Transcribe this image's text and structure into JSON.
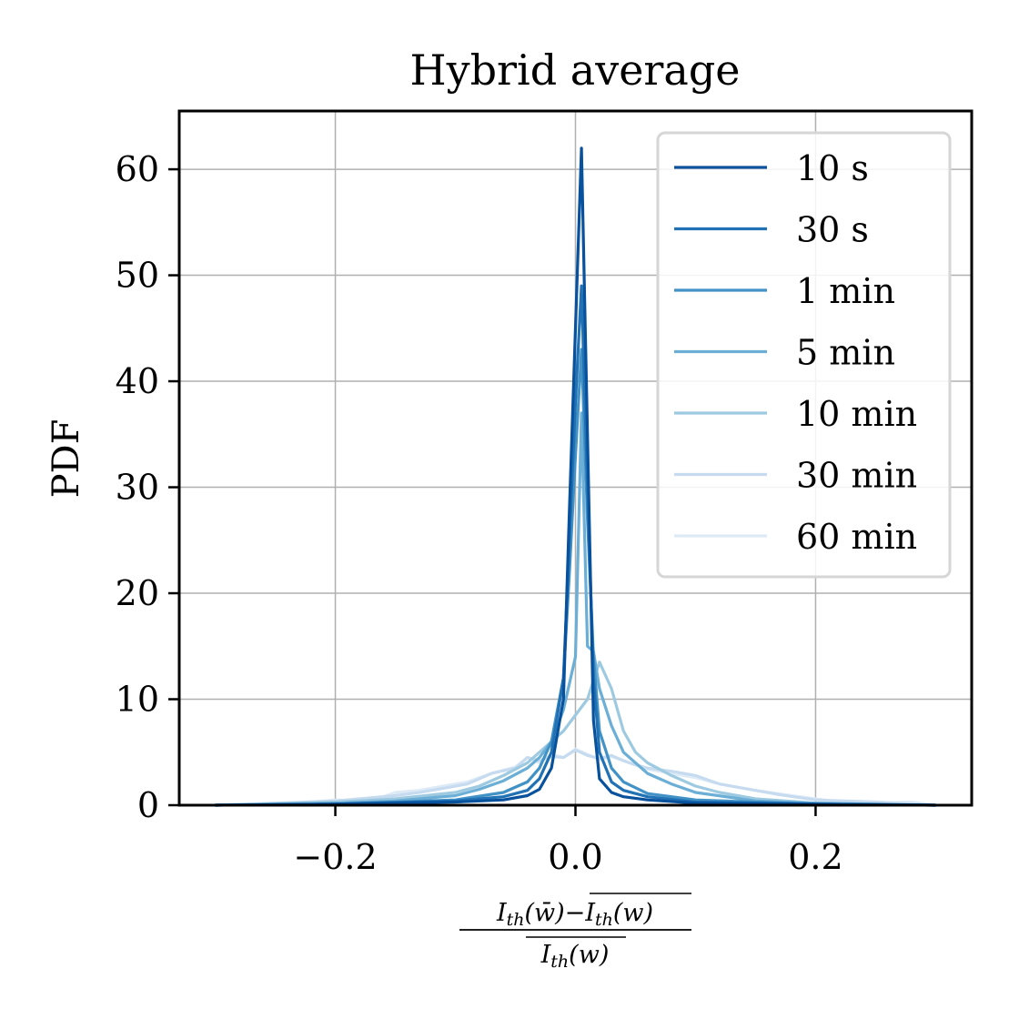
{
  "chart_data": {
    "type": "line",
    "title": "Hybrid average",
    "ylabel": "PDF",
    "xlabel": {
      "numerator": "I_th(w̄)−I_th(w)‾",
      "numerator_left": "I",
      "numerator_left_sub": "th",
      "numerator_left_arg": "(w̄)−",
      "numerator_right": "I",
      "numerator_right_sub": "th",
      "numerator_right_arg": "(w)",
      "denominator_main": "I",
      "denominator_sub": "th",
      "denominator_arg": "(w)"
    },
    "xlim": [
      -0.33,
      0.33
    ],
    "ylim": [
      0,
      65.5
    ],
    "xticks": [
      -0.2,
      0.0,
      0.2
    ],
    "xtick_labels": [
      "−0.2",
      "0.0",
      "0.2"
    ],
    "yticks": [
      0,
      10,
      20,
      30,
      40,
      50,
      60
    ],
    "ytick_labels": [
      "0",
      "10",
      "20",
      "30",
      "40",
      "50",
      "60"
    ],
    "grid": true,
    "legend_position": "top-right",
    "series": [
      {
        "name": "10 s",
        "color": "#08519c",
        "x": [
          -0.3,
          -0.2,
          -0.1,
          -0.06,
          -0.04,
          -0.03,
          -0.02,
          -0.01,
          -0.005,
          0.0,
          0.005,
          0.01,
          0.015,
          0.02,
          0.03,
          0.04,
          0.06,
          0.1,
          0.2,
          0.3
        ],
        "y": [
          0,
          0.1,
          0.3,
          0.5,
          0.9,
          1.5,
          3.5,
          10,
          28,
          45,
          62,
          35,
          8,
          2.5,
          1.2,
          0.8,
          0.5,
          0.2,
          0.1,
          0
        ]
      },
      {
        "name": "30 s",
        "color": "#2171b5",
        "x": [
          -0.3,
          -0.2,
          -0.1,
          -0.06,
          -0.04,
          -0.03,
          -0.02,
          -0.01,
          -0.005,
          0.0,
          0.005,
          0.01,
          0.015,
          0.02,
          0.03,
          0.04,
          0.06,
          0.1,
          0.2,
          0.3
        ],
        "y": [
          0,
          0.1,
          0.4,
          0.8,
          1.4,
          2.5,
          5,
          12,
          25,
          38,
          49,
          30,
          12,
          5,
          2.2,
          1.4,
          0.8,
          0.3,
          0.1,
          0
        ]
      },
      {
        "name": "1 min",
        "color": "#4292c6",
        "x": [
          -0.3,
          -0.2,
          -0.1,
          -0.06,
          -0.04,
          -0.03,
          -0.02,
          -0.01,
          -0.005,
          0.0,
          0.005,
          0.01,
          0.015,
          0.02,
          0.03,
          0.04,
          0.06,
          0.1,
          0.2,
          0.3
        ],
        "y": [
          0,
          0.1,
          0.5,
          1.2,
          2.2,
          3.5,
          6,
          12,
          22,
          33,
          43,
          27,
          14,
          7,
          3.5,
          2.2,
          1.1,
          0.5,
          0.1,
          0
        ]
      },
      {
        "name": "5 min",
        "color": "#6baed6",
        "x": [
          -0.3,
          -0.2,
          -0.15,
          -0.1,
          -0.08,
          -0.06,
          -0.04,
          -0.03,
          -0.02,
          -0.01,
          0.0,
          0.005,
          0.01,
          0.015,
          0.02,
          0.03,
          0.04,
          0.06,
          0.08,
          0.1,
          0.15,
          0.2,
          0.3
        ],
        "y": [
          0,
          0.2,
          0.4,
          0.9,
          1.5,
          2.3,
          3.5,
          4.5,
          6,
          9,
          14,
          37,
          15,
          14.5,
          11,
          7.5,
          5,
          3,
          2,
          1.2,
          0.4,
          0.2,
          0
        ]
      },
      {
        "name": "10 min",
        "color": "#9ecae1",
        "x": [
          -0.3,
          -0.2,
          -0.15,
          -0.1,
          -0.08,
          -0.06,
          -0.04,
          -0.03,
          -0.02,
          -0.01,
          0.0,
          0.01,
          0.02,
          0.03,
          0.04,
          0.05,
          0.06,
          0.08,
          0.1,
          0.12,
          0.15,
          0.2,
          0.3
        ],
        "y": [
          0,
          0.3,
          0.6,
          1.2,
          1.8,
          2.8,
          4,
          5,
          6,
          7,
          8.5,
          10,
          13.5,
          11,
          7,
          5,
          4,
          2.8,
          1.8,
          1.2,
          0.6,
          0.2,
          0
        ]
      },
      {
        "name": "30 min",
        "color": "#c6dbef",
        "x": [
          -0.3,
          -0.25,
          -0.2,
          -0.18,
          -0.15,
          -0.13,
          -0.11,
          -0.09,
          -0.07,
          -0.05,
          -0.04,
          -0.03,
          -0.02,
          -0.01,
          0.0,
          0.01,
          0.02,
          0.03,
          0.04,
          0.05,
          0.06,
          0.08,
          0.1,
          0.12,
          0.14,
          0.17,
          0.2,
          0.25,
          0.3
        ],
        "y": [
          0,
          0.2,
          0.4,
          0.6,
          0.9,
          1.2,
          1.6,
          2.0,
          3.0,
          3.5,
          4.5,
          4.2,
          4.6,
          4.5,
          5.2,
          4.7,
          4.4,
          4.7,
          4.2,
          3.8,
          3.5,
          3.2,
          2.8,
          2.0,
          1.6,
          1.0,
          0.5,
          0.3,
          0
        ]
      },
      {
        "name": "60 min",
        "color": "#deebf7",
        "x": [
          -0.3,
          -0.25,
          -0.22,
          -0.2,
          -0.18,
          -0.16,
          -0.15,
          -0.13,
          -0.11,
          -0.09,
          -0.07,
          -0.05,
          -0.04,
          -0.03,
          -0.02,
          -0.01,
          0.0,
          0.01,
          0.02,
          0.03,
          0.04,
          0.05,
          0.06,
          0.08,
          0.1,
          0.12,
          0.15,
          0.18,
          0.2,
          0.22,
          0.25,
          0.28,
          0.3
        ],
        "y": [
          0,
          0.1,
          0.3,
          0.5,
          0.4,
          0.8,
          1.2,
          1.4,
          1.8,
          2.2,
          3.0,
          3.6,
          4.5,
          4.0,
          4.8,
          4.5,
          5.3,
          4.8,
          4.3,
          4.6,
          4.2,
          3.8,
          3.4,
          3.0,
          2.6,
          2.0,
          1.4,
          0.9,
          0.6,
          0.3,
          0.2,
          0.3,
          0
        ]
      }
    ]
  }
}
